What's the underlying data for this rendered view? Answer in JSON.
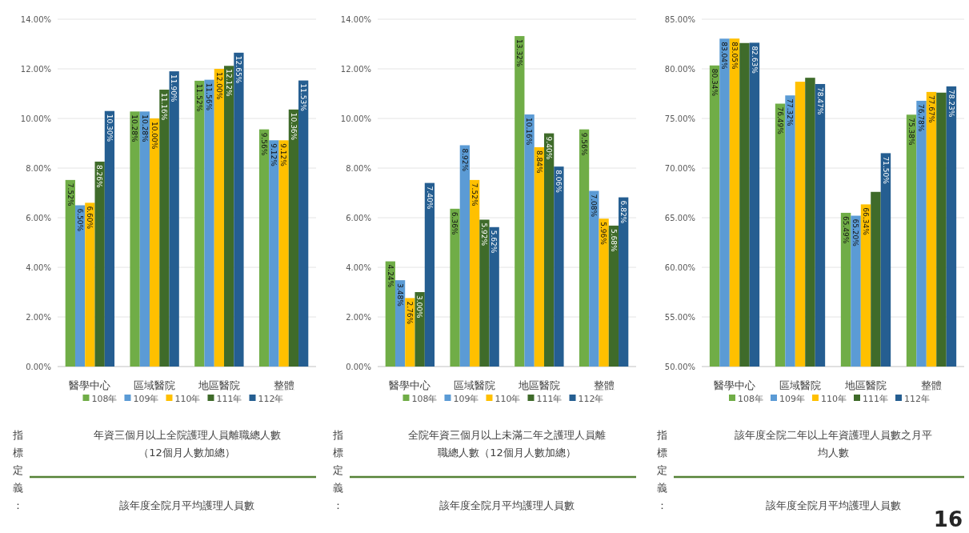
{
  "chart_data": [
    {
      "type": "bar",
      "categories": [
        "醫學中心",
        "區域醫院",
        "地區醫院",
        "整體"
      ],
      "series": [
        {
          "name": "108年",
          "color": "#70ad47",
          "values": [
            7.52,
            10.28,
            11.52,
            9.56
          ],
          "value_labels": [
            "7.52%",
            "10.28%",
            "11.52%",
            "9.56%"
          ]
        },
        {
          "name": "109年",
          "color": "#5b9bd5",
          "values": [
            6.5,
            10.28,
            11.56,
            9.12
          ],
          "value_labels": [
            "6.50%",
            "10.28%",
            "11.56%",
            "9.12%"
          ]
        },
        {
          "name": "110年",
          "color": "#ffc000",
          "values": [
            6.6,
            10.0,
            12.0,
            9.12
          ],
          "value_labels": [
            "6.60%",
            "10.00%",
            "12.00%",
            "9.12%"
          ]
        },
        {
          "name": "111年",
          "color": "#3f6b2a",
          "values": [
            8.26,
            11.16,
            12.12,
            10.36
          ],
          "value_labels": [
            "8.26%",
            "11.16%",
            "12.12%",
            "10.36%"
          ]
        },
        {
          "name": "112年",
          "color": "#255e91",
          "values": [
            10.3,
            11.9,
            12.65,
            11.53
          ],
          "value_labels": [
            "10.30%",
            "11.90%",
            "12.65%",
            "11.53%"
          ]
        }
      ],
      "ylim": [
        0,
        14
      ],
      "yticks": [
        {
          "value": 0,
          "label": "0.00%"
        },
        {
          "value": 2,
          "label": "2.00%"
        },
        {
          "value": 4,
          "label": "4.00%"
        },
        {
          "value": 6,
          "label": "6.00%"
        },
        {
          "value": 8,
          "label": "8.00%"
        },
        {
          "value": 10,
          "label": "10.00%"
        },
        {
          "value": 12,
          "label": "12.00%"
        },
        {
          "value": 14,
          "label": "14.00%"
        }
      ],
      "grid": "y",
      "legend": "bottom",
      "annotations": [
        "指標定義：",
        "年資三個月以上全院護理人員離職總人數（12個月人數加總）",
        "該年度全院月平均護理人員數"
      ]
    },
    {
      "type": "bar",
      "categories": [
        "醫學中心",
        "區域醫院",
        "地區醫院",
        "整體"
      ],
      "series": [
        {
          "name": "108年",
          "color": "#70ad47",
          "values": [
            4.24,
            6.36,
            13.32,
            9.56
          ],
          "value_labels": [
            "4.24%",
            "6.36%",
            "13.32%",
            "9.56%"
          ]
        },
        {
          "name": "109年",
          "color": "#5b9bd5",
          "values": [
            3.48,
            8.92,
            10.16,
            7.08
          ],
          "value_labels": [
            "3.48%",
            "8.92%",
            "10.16%",
            "7.08%"
          ]
        },
        {
          "name": "110年",
          "color": "#ffc000",
          "values": [
            2.76,
            7.52,
            8.84,
            5.96
          ],
          "value_labels": [
            "2.76%",
            "7.52%",
            "8.84%",
            "5.96%"
          ]
        },
        {
          "name": "111年",
          "color": "#3f6b2a",
          "values": [
            3.0,
            5.92,
            9.4,
            5.68
          ],
          "value_labels": [
            "3.00%",
            "5.92%",
            "9.40%",
            "5.68%"
          ]
        },
        {
          "name": "112年",
          "color": "#255e91",
          "values": [
            7.4,
            5.62,
            8.06,
            6.82
          ],
          "value_labels": [
            "7.40%",
            "5.62%",
            "8.06%",
            "6.82%"
          ]
        }
      ],
      "ylim": [
        0,
        14
      ],
      "yticks": [
        {
          "value": 0,
          "label": "0.00%"
        },
        {
          "value": 2,
          "label": "2.00%"
        },
        {
          "value": 4,
          "label": "4.00%"
        },
        {
          "value": 6,
          "label": "6.00%"
        },
        {
          "value": 8,
          "label": "8.00%"
        },
        {
          "value": 10,
          "label": "10.00%"
        },
        {
          "value": 12,
          "label": "12.00%"
        },
        {
          "value": 14,
          "label": "14.00%"
        }
      ],
      "grid": "y",
      "legend": "bottom",
      "annotations": [
        "指標定義：",
        "全院年資三個月以上未滿二年之護理人員離職總人數（12個月人數加總）",
        "該年度全院月平均護理人員數"
      ]
    },
    {
      "type": "bar",
      "categories": [
        "醫學中心",
        "區域醫院",
        "地區醫院",
        "整體"
      ],
      "series": [
        {
          "name": "108年",
          "color": "#70ad47",
          "values": [
            80.34,
            76.49,
            65.49,
            75.38
          ],
          "value_labels": [
            "80.34%",
            "76.49%",
            "65.49%",
            "75.38%"
          ]
        },
        {
          "name": "109年",
          "color": "#5b9bd5",
          "values": [
            83.04,
            77.32,
            65.2,
            76.78
          ],
          "value_labels": [
            "83.04%",
            "77.32%",
            "65.20%",
            "76.78%"
          ]
        },
        {
          "name": "110年",
          "color": "#ffc000",
          "values": [
            83.05,
            78.7,
            66.34,
            77.67
          ],
          "value_labels": [
            "83.05%",
            null,
            "66.34%",
            "77.67%"
          ]
        },
        {
          "name": "111年",
          "color": "#3f6b2a",
          "values": [
            82.6,
            79.1,
            67.6,
            77.6
          ],
          "value_labels": [
            null,
            null,
            null,
            null
          ]
        },
        {
          "name": "112年",
          "color": "#255e91",
          "values": [
            82.63,
            78.47,
            71.5,
            78.23
          ],
          "value_labels": [
            "82.63%",
            "78.47%",
            "71.50%",
            "78.23%"
          ]
        }
      ],
      "ylim": [
        50,
        85
      ],
      "yticks": [
        {
          "value": 50,
          "label": "50.00%"
        },
        {
          "value": 55,
          "label": "55.00%"
        },
        {
          "value": 60,
          "label": "60.00%"
        },
        {
          "value": 65,
          "label": "65.00%"
        },
        {
          "value": 70,
          "label": "70.00%"
        },
        {
          "value": 75,
          "label": "75.00%"
        },
        {
          "value": 80,
          "label": "80.00%"
        },
        {
          "value": 85,
          "label": "85.00%"
        }
      ],
      "grid": "y",
      "legend": "bottom",
      "annotations": [
        "指標定義：",
        "該年度全院二年以上年資護理人員數之月平均人數",
        "該年度全院月平均護理人員數",
        "16"
      ]
    }
  ]
}
